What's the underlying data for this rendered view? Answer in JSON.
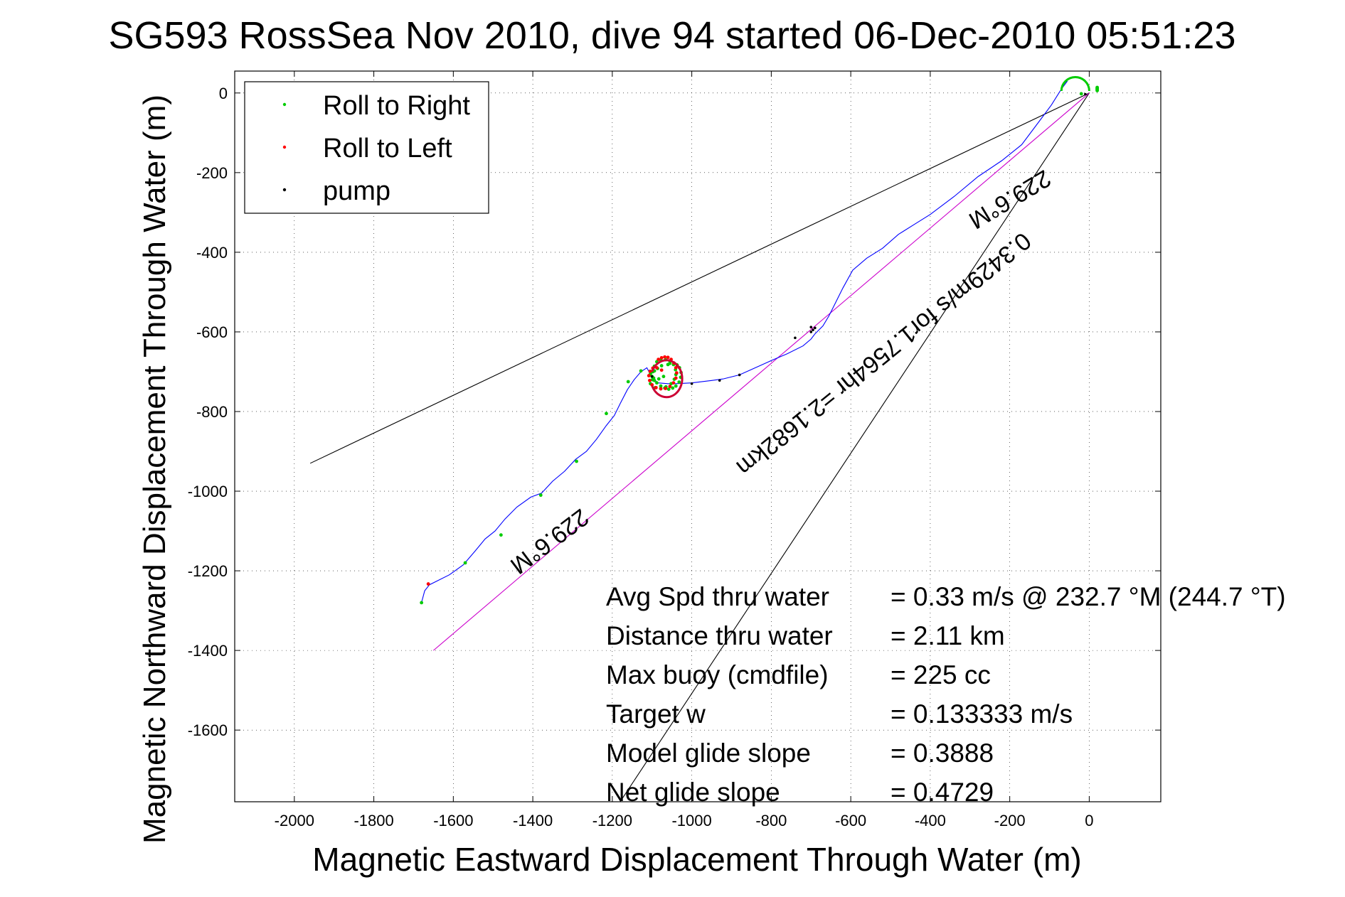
{
  "chart_data": {
    "type": "line",
    "title": "SG593 RossSea Nov 2010, dive 94 started 06-Dec-2010 05:51:23",
    "xlabel": "Magnetic Eastward Displacement Through Water (m)",
    "ylabel": "Magnetic Northward Displacement Through Water (m)",
    "xlim": [
      -2150,
      180
    ],
    "ylim": [
      -1780,
      55
    ],
    "xticks": [
      -2000,
      -1800,
      -1600,
      -1400,
      -1200,
      -1000,
      -800,
      -600,
      -400,
      -200,
      0
    ],
    "yticks": [
      0,
      -200,
      -400,
      -600,
      -800,
      -1000,
      -1200,
      -1400,
      -1600
    ],
    "xtick_labels": [
      "-2000",
      "-1800",
      "-1600",
      "-1400",
      "-1200",
      "-1000",
      "-800",
      "-600",
      "-400",
      "-200",
      "0"
    ],
    "ytick_labels": [
      "0",
      "-200",
      "-400",
      "-600",
      "-800",
      "-1000",
      "-1200",
      "-1400",
      "-1600"
    ],
    "grid": true,
    "legend": {
      "placement": "top-left",
      "entries": [
        {
          "label": "Roll to Right",
          "color": "#00cc00"
        },
        {
          "label": "Roll to Left",
          "color": "#ff0000"
        },
        {
          "label": "pump",
          "color": "#000000"
        }
      ]
    },
    "track": {
      "color": "#0000ff",
      "x": [
        -1680,
        -1672,
        -1660,
        -1640,
        -1610,
        -1575,
        -1545,
        -1520,
        -1495,
        -1470,
        -1440,
        -1405,
        -1378,
        -1350,
        -1320,
        -1292,
        -1265,
        -1240,
        -1215,
        -1195,
        -1180,
        -1162,
        -1145,
        -1128,
        -1113,
        -1100,
        -1085,
        -1060,
        -1040,
        -1000,
        -950,
        -920,
        -880,
        -840,
        -800,
        -760,
        -720,
        -700,
        -690,
        -670,
        -655,
        -640,
        -620,
        -595,
        -560,
        -520,
        -480,
        -440,
        -400,
        -340,
        -280,
        -220,
        -170,
        -125,
        -95,
        -70,
        -55
      ],
      "y": [
        -1280,
        -1250,
        -1235,
        -1225,
        -1210,
        -1185,
        -1150,
        -1120,
        -1100,
        -1070,
        -1040,
        -1015,
        -1005,
        -975,
        -950,
        -920,
        -900,
        -870,
        -835,
        -810,
        -780,
        -745,
        -720,
        -700,
        -690,
        -715,
        -728,
        -730,
        -730,
        -728,
        -722,
        -718,
        -708,
        -690,
        -672,
        -655,
        -635,
        -618,
        -605,
        -585,
        -560,
        -530,
        -490,
        -445,
        -415,
        -390,
        -355,
        -330,
        -305,
        -260,
        -210,
        -170,
        -130,
        -70,
        -30,
        10,
        30
      ]
    },
    "right_roll_points": {
      "x": [
        -1680,
        -1570,
        -1480,
        -1380,
        -1290,
        -1215,
        -1160,
        -1128,
        -1102,
        -1094,
        -1086,
        -1076,
        -1060,
        -1055,
        -1045,
        -1037,
        -1031,
        -1027,
        -1028,
        -1032,
        -1040,
        -1048,
        -1058,
        -1068,
        -1078,
        -1088,
        -1096,
        -1104,
        -1104,
        -1092,
        -1078,
        -1065,
        -1052,
        -1044,
        -1040,
        -1041,
        -1046,
        -1055,
        -1066,
        -1078,
        -1088,
        -1094,
        -1098,
        -1100,
        -1099,
        -1094,
        -1083,
        -1071,
        -20,
        20,
        20,
        20,
        20,
        20
      ],
      "y": [
        -1280,
        -1180,
        -1110,
        -1010,
        -925,
        -805,
        -725,
        -698,
        -700,
        -698,
        -692,
        -685,
        -682,
        -679,
        -679,
        -683,
        -690,
        -702,
        -714,
        -726,
        -736,
        -741,
        -744,
        -741,
        -736,
        -728,
        -716,
        -705,
        -730,
        -740,
        -742,
        -738,
        -730,
        -719,
        -707,
        -695,
        -682,
        -674,
        -670,
        -670,
        -675,
        -686,
        -700,
        -712,
        -720,
        -722,
        -718,
        -712,
        -2,
        12,
        8,
        10,
        14,
        6
      ]
    },
    "left_roll_points": {
      "x": [
        -1663,
        -1084,
        -1076,
        -1068,
        -1060,
        -1052,
        -1045,
        -1040,
        -1038,
        -1040,
        -1046,
        -1055,
        -1066,
        -1078,
        -1090,
        -1100,
        -1106,
        -1108,
        -1105,
        -1098,
        -1088,
        -1076
      ],
      "y": [
        -1233,
        -669,
        -665,
        -663,
        -664,
        -669,
        -678,
        -690,
        -703,
        -716,
        -728,
        -737,
        -742,
        -743,
        -740,
        -733,
        -722,
        -710,
        -699,
        -691,
        -690,
        -696
      ]
    },
    "pump_points": {
      "x": [
        -1100,
        -1000,
        -930,
        -880,
        -740,
        -700,
        -695,
        -690,
        -700,
        -10
      ],
      "y": [
        -712,
        -730,
        -722,
        -708,
        -615,
        -600,
        -595,
        -590,
        -588,
        -3
      ]
    },
    "bearing_lines": [
      {
        "name": "bound-upper",
        "color": "#000000",
        "x": [
          -1960,
          0
        ],
        "y": [
          -930,
          0
        ]
      },
      {
        "name": "bound-lower",
        "color": "#000000",
        "x": [
          -1240,
          0
        ],
        "y": [
          -1870,
          0
        ]
      },
      {
        "name": "mean-course",
        "color": "#cc00cc",
        "x": [
          -1650,
          0
        ],
        "y": [
          -1400,
          0
        ]
      }
    ],
    "annotations": [
      {
        "text": "229.6°M",
        "x": -1370,
        "y": -1110,
        "angle": 143
      },
      {
        "text": "229.6°M",
        "x": -210,
        "y": -250,
        "angle": 149
      },
      {
        "text": "0.3429m/s for1.7564hr =2.1682km",
        "x": -530,
        "y": -640,
        "angle": 141
      }
    ],
    "stats": [
      {
        "label": "Avg Spd thru water",
        "value": "=  0.33 m/s @ 232.7  °M (244.7 °T)"
      },
      {
        "label": "Distance thru water",
        "value": "=  2.11 km"
      },
      {
        "label": "Max buoy (cmdfile)",
        "value": "= 225 cc"
      },
      {
        "label": "Target w",
        "value": "= 0.133333 m/s"
      },
      {
        "label": "Model glide slope",
        "value": "= 0.3888"
      },
      {
        "label": "Net glide slope",
        "value": "= 0.4729"
      }
    ]
  }
}
